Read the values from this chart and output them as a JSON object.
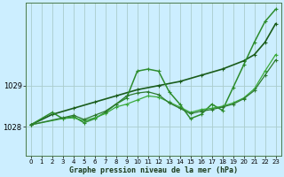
{
  "background_color": "#cceeff",
  "grid_color": "#aacccc",
  "xlabel": "Graphe pression niveau de la mer (hPa)",
  "ylabel_ticks": [
    1028,
    1029
  ],
  "xlim": [
    -0.5,
    23.5
  ],
  "ylim": [
    1027.3,
    1031.0
  ],
  "xticks": [
    0,
    1,
    2,
    3,
    4,
    5,
    6,
    7,
    8,
    9,
    10,
    11,
    12,
    13,
    14,
    15,
    16,
    17,
    18,
    19,
    20,
    21,
    22,
    23
  ],
  "series": [
    {
      "x": [
        0,
        2,
        4,
        6,
        8,
        10,
        12,
        14,
        16,
        18,
        20,
        21,
        22,
        23
      ],
      "y": [
        1028.05,
        1028.3,
        1028.45,
        1028.6,
        1028.75,
        1028.9,
        1029.0,
        1029.1,
        1029.25,
        1029.4,
        1029.6,
        1029.75,
        1030.05,
        1030.5
      ],
      "color": "#1a5c1a",
      "lw": 1.2,
      "marker": "+"
    },
    {
      "x": [
        0,
        2,
        3,
        4,
        5,
        6,
        7,
        8,
        9,
        10,
        11,
        12,
        13,
        14,
        15,
        16,
        17,
        18,
        19,
        20,
        21,
        22,
        23
      ],
      "y": [
        1028.05,
        1028.35,
        1028.2,
        1028.25,
        1028.1,
        1028.2,
        1028.35,
        1028.55,
        1028.7,
        1029.35,
        1029.4,
        1029.35,
        1028.85,
        1028.55,
        1028.2,
        1028.3,
        1028.55,
        1028.4,
        1028.95,
        1029.5,
        1030.05,
        1030.55,
        1030.85
      ],
      "color": "#2d8c2d",
      "lw": 1.1,
      "marker": "+"
    },
    {
      "x": [
        0,
        3,
        4,
        5,
        6,
        7,
        8,
        9,
        10,
        11,
        12,
        13,
        14,
        15,
        16,
        17,
        18,
        19,
        20,
        21,
        22,
        23
      ],
      "y": [
        1028.05,
        1028.2,
        1028.22,
        1028.15,
        1028.22,
        1028.32,
        1028.48,
        1028.55,
        1028.65,
        1028.75,
        1028.72,
        1028.6,
        1028.48,
        1028.35,
        1028.42,
        1028.45,
        1028.5,
        1028.58,
        1028.7,
        1028.92,
        1029.35,
        1029.75
      ],
      "color": "#3aaa3a",
      "lw": 0.9,
      "marker": "+"
    },
    {
      "x": [
        0,
        3,
        4,
        5,
        6,
        7,
        8,
        9,
        10,
        11,
        12,
        13,
        14,
        15,
        16,
        17,
        18,
        19,
        20,
        21,
        22,
        23
      ],
      "y": [
        1028.05,
        1028.22,
        1028.28,
        1028.18,
        1028.28,
        1028.38,
        1028.55,
        1028.75,
        1028.82,
        1028.85,
        1028.78,
        1028.58,
        1028.45,
        1028.32,
        1028.38,
        1028.42,
        1028.48,
        1028.55,
        1028.68,
        1028.88,
        1029.25,
        1029.62
      ],
      "color": "#2d7a2d",
      "lw": 0.9,
      "marker": "+"
    }
  ]
}
